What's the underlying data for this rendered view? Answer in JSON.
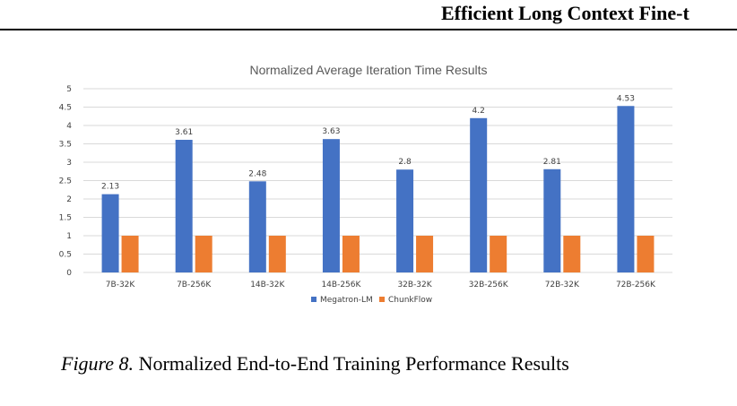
{
  "header": {
    "running_title": "Efficient Long Context Fine-t"
  },
  "chart_data": {
    "type": "bar",
    "title": "Normalized Average Iteration Time Results",
    "xlabel": "",
    "ylabel": "",
    "categories": [
      "7B-32K",
      "7B-256K",
      "14B-32K",
      "14B-256K",
      "32B-32K",
      "32B-256K",
      "72B-32K",
      "72B-256K"
    ],
    "series": [
      {
        "name": "Megatron-LM",
        "color": "#4472C4",
        "values": [
          2.13,
          3.61,
          2.48,
          3.63,
          2.8,
          4.2,
          2.81,
          4.53
        ],
        "data_labels": [
          "2.13",
          "3.61",
          "2.48",
          "3.63",
          "2.8",
          "4.2",
          "2.81",
          "4.53"
        ]
      },
      {
        "name": "ChunkFlow",
        "color": "#ED7D31",
        "values": [
          1,
          1,
          1,
          1,
          1,
          1,
          1,
          1
        ],
        "data_labels": []
      }
    ],
    "ylim": [
      0,
      5
    ],
    "yticks": [
      "0",
      "0.5",
      "1",
      "1.5",
      "2",
      "2.5",
      "3",
      "3.5",
      "4",
      "4.5",
      "5"
    ],
    "grid": true,
    "legend_position": "bottom"
  },
  "caption": {
    "label": "Figure 8.",
    "text": " Normalized End-to-End Training Performance Results"
  }
}
